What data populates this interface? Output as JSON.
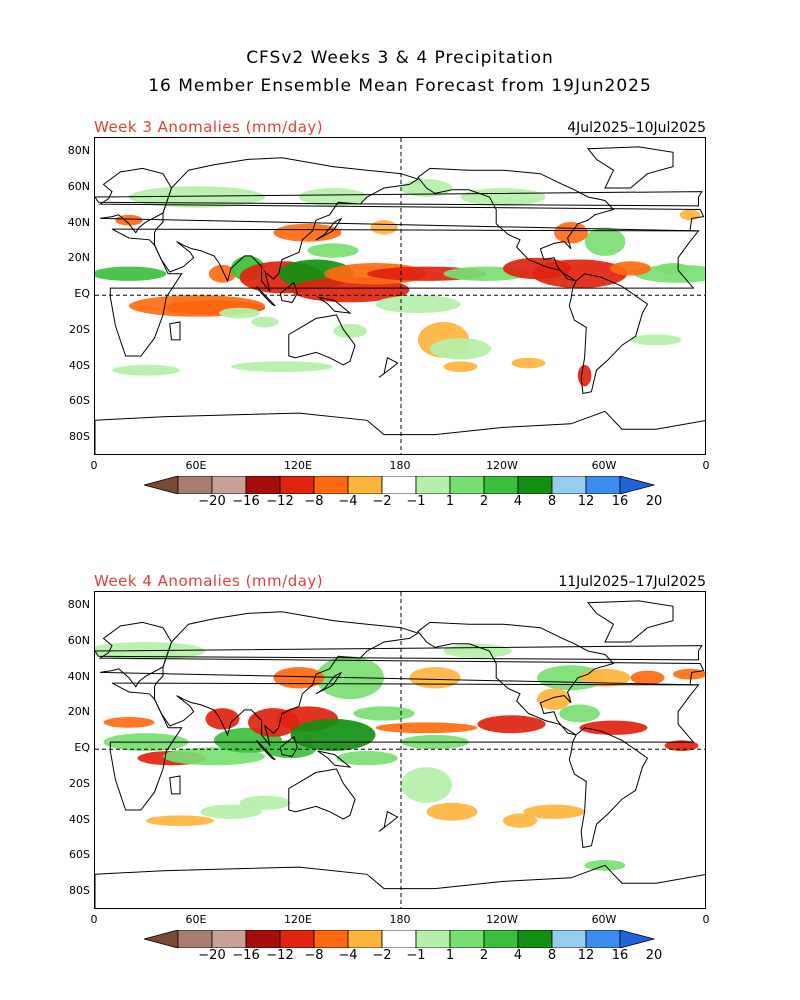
{
  "header": {
    "line1": "CFSv2 Weeks 3 & 4 Precipitation",
    "line2": "16 Member Ensemble Mean Forecast from 19Jun2025"
  },
  "panels": [
    {
      "label": "Week 3 Anomalies (mm/day)",
      "dates": "4Jul2025–10Jul2025"
    },
    {
      "label": "Week 4 Anomalies (mm/day)",
      "dates": "11Jul2025–17Jul2025"
    }
  ],
  "lat_ticks": [
    "80N",
    "60N",
    "40N",
    "20N",
    "EQ",
    "20S",
    "40S",
    "60S",
    "80S"
  ],
  "lon_ticks": [
    "0",
    "60E",
    "120E",
    "180",
    "120W",
    "60W",
    "0"
  ],
  "colorbar": {
    "labels": [
      "−20",
      "−16",
      "−12",
      "−8",
      "−4",
      "−2",
      "−1",
      "1",
      "2",
      "4",
      "8",
      "12",
      "16",
      "20"
    ],
    "colors": [
      "#7a4a35",
      "#a87c6e",
      "#c9a095",
      "#a50f0a",
      "#e0230e",
      "#ff6a10",
      "#ffb43c",
      "#ffffff",
      "#b4f0a8",
      "#78e070",
      "#3cc03c",
      "#129012",
      "#96ccf0",
      "#3c8cf0",
      "#1e64dc"
    ]
  },
  "legend_colors": {
    "dry_strong": "#e0230e",
    "dry_mod": "#ff6a10",
    "dry_weak": "#ffb43c",
    "wet_weak": "#b4f0a8",
    "wet_mod": "#78e070",
    "wet_strong": "#3cc03c",
    "wet_vstrong": "#129012"
  }
}
